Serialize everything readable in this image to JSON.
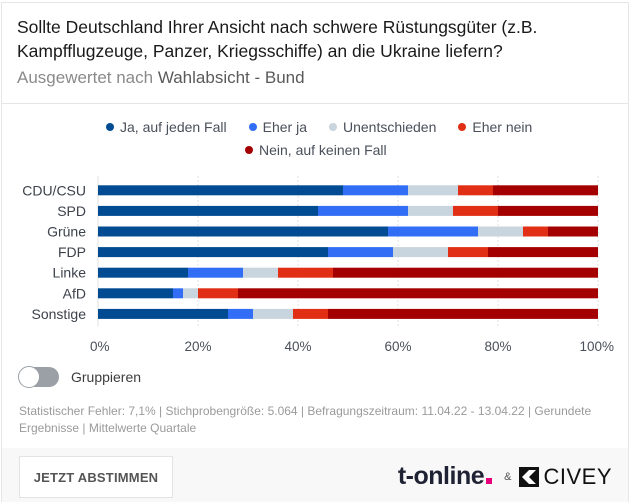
{
  "header": {
    "title": "Sollte Deutschland Ihrer Ansicht nach schwere Rüstungsgüter (z.B. Kampfflugzeuge, Panzer, Kriegsschiffe) an die Ukraine liefern?",
    "subtitle_prefix": "Ausgewertet nach ",
    "subtitle_bold": "Wahlabsicht - Bund"
  },
  "controls": {
    "group_toggle_label": "Gruppieren",
    "group_toggle_on": false
  },
  "meta_text": "Statistischer Fehler: 7,1% | Stichprobengröße: 5.064 | Befragungszeitraum: 11.04.22 - 13.04.22 | Gerundete Ergebnisse | Mittelwerte Quartale",
  "footer": {
    "vote_button": "JETZT ABSTIMMEN",
    "brand_tonline": "t-online",
    "brand_amp": "&",
    "brand_civey": "CIVEY"
  },
  "chart_data": {
    "type": "bar",
    "orientation": "horizontal",
    "stacked": true,
    "title": "Sollte Deutschland Ihrer Ansicht nach schwere Rüstungsgüter (z.B. Kampfflugzeuge, Panzer, Kriegsschiffe) an die Ukraine liefern?",
    "xlabel": "",
    "ylabel": "",
    "xlim": [
      0,
      100
    ],
    "x_ticks": [
      "0%",
      "20%",
      "40%",
      "60%",
      "80%",
      "100%"
    ],
    "grid": true,
    "legend_position": "top",
    "categories": [
      "CDU/CSU",
      "SPD",
      "Grüne",
      "FDP",
      "Linke",
      "AfD",
      "Sonstige"
    ],
    "series": [
      {
        "name": "Ja, auf jeden Fall",
        "color": "#004b91",
        "values": [
          49,
          44,
          58,
          46,
          18,
          15,
          26
        ]
      },
      {
        "name": "Eher ja",
        "color": "#326ef5",
        "values": [
          13,
          18,
          18,
          13,
          11,
          2,
          5
        ]
      },
      {
        "name": "Unentschieden",
        "color": "#c8d4de",
        "values": [
          10,
          9,
          9,
          11,
          7,
          3,
          8
        ]
      },
      {
        "name": "Eher nein",
        "color": "#e02f14",
        "values": [
          7,
          9,
          5,
          8,
          11,
          8,
          7
        ]
      },
      {
        "name": "Nein, auf keinen Fall",
        "color": "#a50000",
        "values": [
          21,
          20,
          10,
          22,
          53,
          72,
          54
        ]
      }
    ]
  }
}
